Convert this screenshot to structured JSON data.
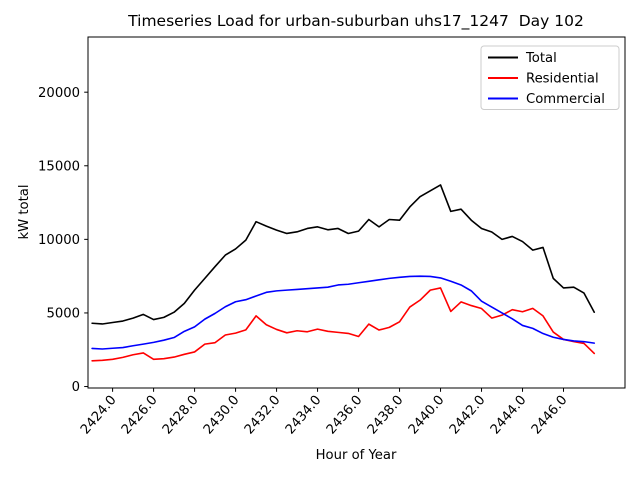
{
  "figure": {
    "background": "#ffffff",
    "text_color": "#000000"
  },
  "chart_data": {
    "type": "line",
    "title": "Timeseries Load for urban-suburban uhs17_1247  Day 102",
    "xlabel": "Hour of Year",
    "ylabel": "kW total",
    "xlim": [
      2422.8,
      2449.0
    ],
    "ylim": [
      -100,
      23750
    ],
    "grid": false,
    "legend": {
      "position": "upper right",
      "frame_color": "#cccccc",
      "frame_fill": "#ffffff"
    },
    "xticks": {
      "values": [
        2424,
        2426,
        2428,
        2430,
        2432,
        2434,
        2436,
        2438,
        2440,
        2442,
        2444,
        2446
      ],
      "labels": [
        "2424.0",
        "2426.0",
        "2428.0",
        "2430.0",
        "2432.0",
        "2434.0",
        "2436.0",
        "2438.0",
        "2440.0",
        "2442.0",
        "2444.0",
        "2446.0"
      ]
    },
    "yticks": {
      "values": [
        0,
        5000,
        10000,
        15000,
        20000
      ],
      "labels": [
        "0",
        "5000",
        "10000",
        "15000",
        "20000"
      ]
    },
    "x": [
      2423.0,
      2423.5,
      2424.0,
      2424.5,
      2425.0,
      2425.5,
      2426.0,
      2426.5,
      2427.0,
      2427.5,
      2428.0,
      2428.5,
      2429.0,
      2429.5,
      2430.0,
      2430.5,
      2431.0,
      2431.5,
      2432.0,
      2432.5,
      2433.0,
      2433.5,
      2434.0,
      2434.5,
      2435.0,
      2435.5,
      2436.0,
      2436.5,
      2437.0,
      2437.5,
      2438.0,
      2438.5,
      2439.0,
      2439.5,
      2440.0,
      2440.5,
      2441.0,
      2441.5,
      2442.0,
      2442.5,
      2443.0,
      2443.5,
      2444.0,
      2444.5,
      2445.0,
      2445.5,
      2446.0,
      2446.5,
      2447.0,
      2447.5
    ],
    "series": [
      {
        "name": "Total",
        "color": "#000000",
        "values": [
          4300,
          4250,
          4350,
          4450,
          4650,
          4900,
          4550,
          4700,
          5050,
          5650,
          6550,
          7350,
          8150,
          8930,
          9350,
          9950,
          11200,
          10900,
          10630,
          10400,
          10510,
          10740,
          10850,
          10650,
          10740,
          10400,
          10560,
          11350,
          10850,
          11350,
          11300,
          12200,
          12900,
          13300,
          13700,
          11900,
          12050,
          11300,
          10740,
          10500,
          10000,
          10200,
          9850,
          9270,
          9450,
          7350,
          6700,
          6750,
          6350,
          5050
        ]
      },
      {
        "name": "Residential",
        "color": "#ff0000",
        "values": [
          1750,
          1780,
          1850,
          1980,
          2160,
          2280,
          1850,
          1890,
          2000,
          2190,
          2350,
          2880,
          2980,
          3500,
          3630,
          3850,
          4800,
          4200,
          3880,
          3650,
          3790,
          3720,
          3900,
          3750,
          3680,
          3610,
          3400,
          4240,
          3840,
          4020,
          4400,
          5400,
          5870,
          6550,
          6700,
          5100,
          5750,
          5500,
          5300,
          4650,
          4850,
          5220,
          5080,
          5310,
          4800,
          3700,
          3200,
          3050,
          2930,
          2250
        ]
      },
      {
        "name": "Commercial",
        "color": "#0000ff",
        "values": [
          2590,
          2550,
          2600,
          2650,
          2770,
          2880,
          3000,
          3150,
          3330,
          3750,
          4050,
          4580,
          4970,
          5420,
          5760,
          5900,
          6150,
          6400,
          6500,
          6550,
          6600,
          6650,
          6700,
          6750,
          6900,
          6950,
          7050,
          7150,
          7250,
          7350,
          7420,
          7480,
          7500,
          7480,
          7380,
          7150,
          6900,
          6500,
          5800,
          5400,
          5000,
          4600,
          4150,
          3950,
          3600,
          3350,
          3200,
          3100,
          3050,
          2950
        ]
      }
    ]
  }
}
